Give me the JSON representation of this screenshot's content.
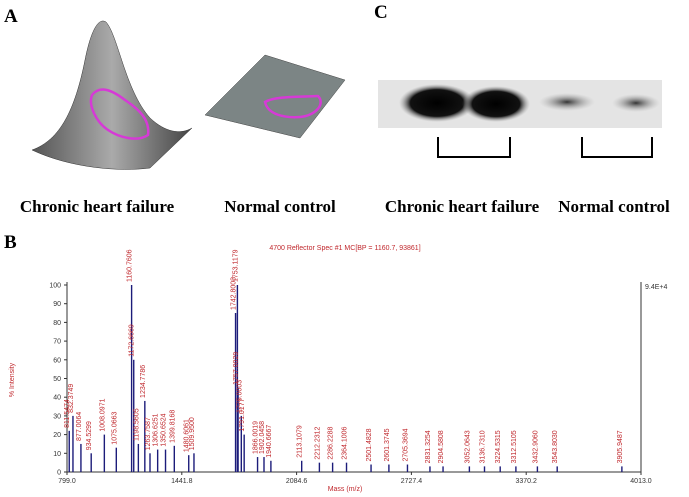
{
  "panels": {
    "a": {
      "label": "A",
      "captions": [
        "Chronic heart failure",
        "Normal control"
      ]
    },
    "c": {
      "label": "C",
      "captions": [
        "Chronic heart failure",
        "Normal control"
      ]
    },
    "b": {
      "label": "B"
    }
  },
  "chart_data": {
    "type": "spectrum",
    "title": "4700 Reflector Spec #1 MC[BP = 1160.7, 93861]",
    "x_label": "Mass (m/z)",
    "y_label": "% Intensity",
    "right_label": "9.4E+4",
    "color": "#1c1c7a",
    "label_color": "#c0282d",
    "xlim": [
      799,
      4013
    ],
    "xticks": [
      {
        "value": 799,
        "label": "799.0"
      },
      {
        "value": 1441.8,
        "label": "1441.8"
      },
      {
        "value": 2084.6,
        "label": "2084.6"
      },
      {
        "value": 2727.4,
        "label": "2727.4"
      },
      {
        "value": 3370.2,
        "label": "3370.2"
      },
      {
        "value": 4013,
        "label": "4013.0"
      }
    ],
    "ylim": [
      0,
      100
    ],
    "yticks": [
      0,
      10,
      20,
      30,
      40,
      50,
      60,
      70,
      80,
      90,
      100
    ],
    "x": [
      811.5474,
      832.3749,
      877.0064,
      934.5299,
      1008.0971,
      1075.0663,
      1160.7606,
      1172.6669,
      1198.5605,
      1234.7786,
      1263.7587,
      1306.6251,
      1350.6524,
      1399.8168,
      1480.6061,
      1509.95,
      1742.8003,
      1753.1179,
      1757.0029,
      1775.0003,
      1791.0177,
      1866.0019,
      1902.0458,
      1940.6667,
      2113.1079,
      2212.2312,
      2286.2288,
      2364.1006,
      2501.4828,
      2601.3745,
      2705.3694,
      2831.3254,
      2904.5808,
      3052.0643,
      3136.731,
      3224.5315,
      3312.5105,
      3432.906,
      3543.803,
      3905.9487
    ],
    "labels": [
      "811.5474",
      "832.3749",
      "877.0064",
      "934.5299",
      "1008.0971",
      "1075.0663",
      "1160.7606",
      "1172.6669",
      "1198.5605",
      "1234.7786",
      "1263.7587",
      "1306.6251",
      "1350.6524",
      "1399.8168",
      "1480.6061",
      "1509.9500",
      "1742.8003",
      "1753.1179",
      "1757.0029",
      "1775.0003",
      "1791.0177",
      "1866.0019",
      "1902.0458",
      "1940.6667",
      "2113.1079",
      "2212.2312",
      "2286.2288",
      "2364.1006",
      "2501.4828",
      "2601.3745",
      "2705.3694",
      "2831.3254",
      "2904.5808",
      "3052.0643",
      "3136.7310",
      "3224.5315",
      "3312.5105",
      "3432.9060",
      "3543.8030",
      "3905.9487"
    ],
    "values": [
      22,
      30,
      15,
      10,
      20,
      13,
      100,
      60,
      15,
      38,
      10,
      12,
      12,
      14,
      9,
      10,
      85,
      100,
      45,
      30,
      20,
      8,
      8,
      6,
      6,
      5,
      5,
      5,
      4,
      4,
      4,
      3,
      3,
      3,
      3,
      3,
      3,
      3,
      3,
      3
    ]
  }
}
